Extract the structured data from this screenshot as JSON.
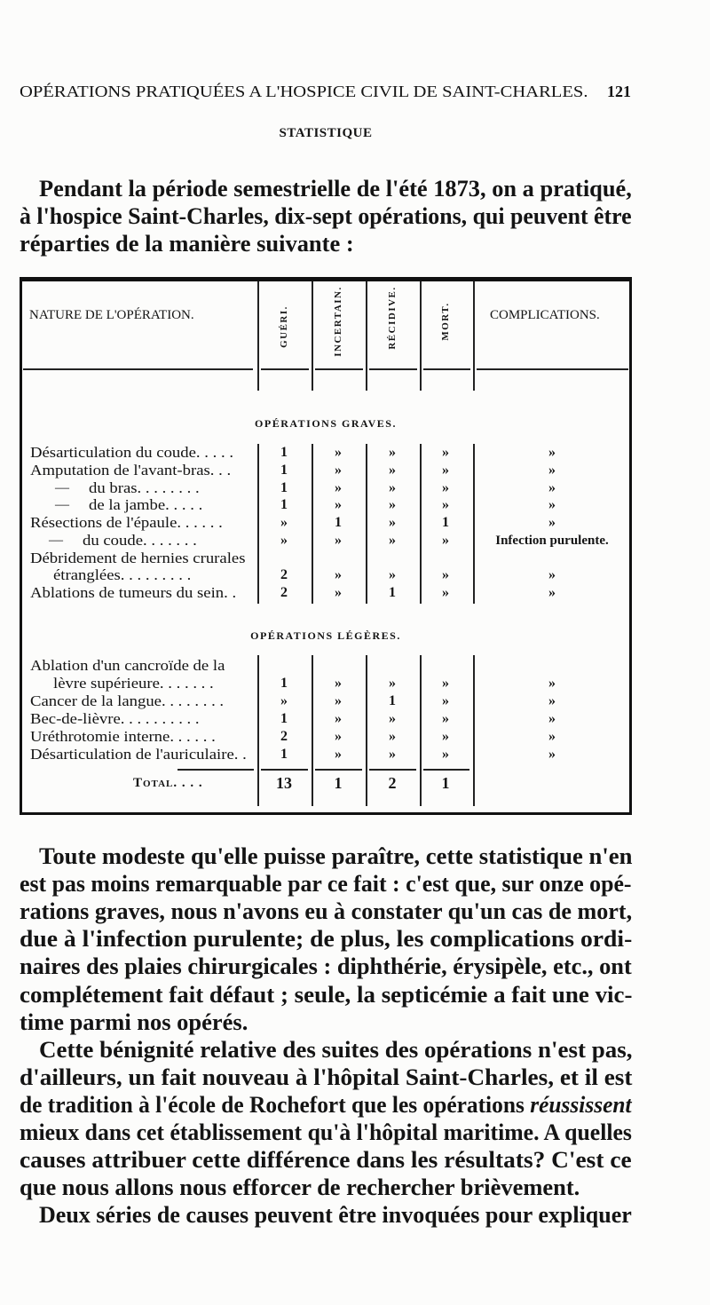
{
  "running_head": {
    "title": "OPÉRATIONS PRATIQUÉES A L'HOSPICE CIVIL DE SAINT-CHARLES.",
    "page_number": "121"
  },
  "section_title": "STATISTIQUE",
  "intro": {
    "lines": [
      "Pendant la période semestrielle de l'été 1873, on a pratiqué,",
      "à l'hospice Saint-Charles, dix-sept opérations, qui peuvent être",
      "réparties de la manière suivante :"
    ]
  },
  "table": {
    "headers": {
      "nature": "NATURE DE L'OPÉRATION.",
      "gueri": "GUÉRI.",
      "incertain": "INCERTAIN.",
      "recidive": "RÉCIDIVE.",
      "mort": "MORT.",
      "complications": "COMPLICATIONS."
    },
    "sections": [
      {
        "title": "OPÉRATIONS GRAVES.",
        "rows": [
          {
            "label": "Désarticulation du coude. . . . .",
            "values": [
              "1",
              "»",
              "»",
              "»",
              "»"
            ]
          },
          {
            "label": "Amputation de l'avant-bras. . .",
            "values": [
              "1",
              "»",
              "»",
              "»",
              "»"
            ]
          },
          {
            "dash": "—",
            "label": "du bras. . . . . . . .",
            "values": [
              "1",
              "»",
              "»",
              "»",
              "»"
            ]
          },
          {
            "dash": "—",
            "label": "de la jambe. . . . .",
            "values": [
              "1",
              "»",
              "»",
              "»",
              "»"
            ]
          },
          {
            "label": "Résections de l'épaule. . . . . .",
            "values": [
              "»",
              "1",
              "»",
              "1",
              "»"
            ]
          },
          {
            "dash": "—",
            "label": "du coude. . . . . . .",
            "values": [
              "»",
              "»",
              "»",
              "»",
              "Infection purulente."
            ]
          },
          {
            "label": "Débridement de hernies crurales",
            "values": []
          },
          {
            "label": "étranglées. . . . . . . . .",
            "values": [
              "2",
              "»",
              "»",
              "»",
              "»"
            ]
          },
          {
            "label": "Ablations de tumeurs du sein. .",
            "values": [
              "2",
              "»",
              "1",
              "»",
              "»"
            ]
          }
        ]
      },
      {
        "title": "OPÉRATIONS LÉGÈRES.",
        "rows": [
          {
            "label": "Ablation d'un cancroïde de la",
            "values": []
          },
          {
            "label": "lèvre supérieure. . . . . . .",
            "values": [
              "1",
              "»",
              "»",
              "»",
              "»"
            ]
          },
          {
            "label": "Cancer de la langue. . . . . . . .",
            "values": [
              "»",
              "»",
              "1",
              "»",
              "»"
            ]
          },
          {
            "label": "Bec-de-lièvre. . . . . . . . . .",
            "values": [
              "1",
              "»",
              "»",
              "»",
              "»"
            ]
          },
          {
            "label": "Uréthrotomie interne. . . . . .",
            "values": [
              "2",
              "»",
              "»",
              "»",
              "»"
            ]
          },
          {
            "label": "Désarticulation de l'auriculaire. .",
            "values": [
              "1",
              "»",
              "»",
              "»",
              "»"
            ]
          }
        ]
      }
    ],
    "total": {
      "label": "Total. . . .",
      "values": [
        "13",
        "1",
        "2",
        "1"
      ]
    }
  },
  "paragraphs": [
    {
      "lines": [
        "Toute modeste qu'elle puisse paraître, cette statistique n'en",
        "est pas moins remarquable par ce fait : c'est que, sur onze opé-",
        "rations graves, nous n'avons eu à constater qu'un cas de mort,",
        "due à l'infection purulente; de plus, les complications ordi-",
        "naires des plaies chirurgicales : diphthérie, érysipèle, etc., ont",
        "complétement fait défaut ; seule, la septicémie a fait une vic-",
        "time parmi nos opérés."
      ]
    },
    {
      "emphasis": "réussissent",
      "lines": [
        "Cette bénignité relative des suites des opérations n'est pas,",
        "d'ailleurs, un fait nouveau à l'hôpital Saint-Charles, et il est",
        "de tradition à l'école de Rochefort que les opérations réussissent",
        "mieux dans cet établissement qu'à l'hôpital maritime. A quelles",
        "causes attribuer cette différence dans les résultats? C'est ce",
        "que nous allons nous efforcer de rechercher brièvement."
      ]
    },
    {
      "lines": [
        "Deux séries de causes peuvent être invoquées pour expliquer"
      ]
    }
  ]
}
